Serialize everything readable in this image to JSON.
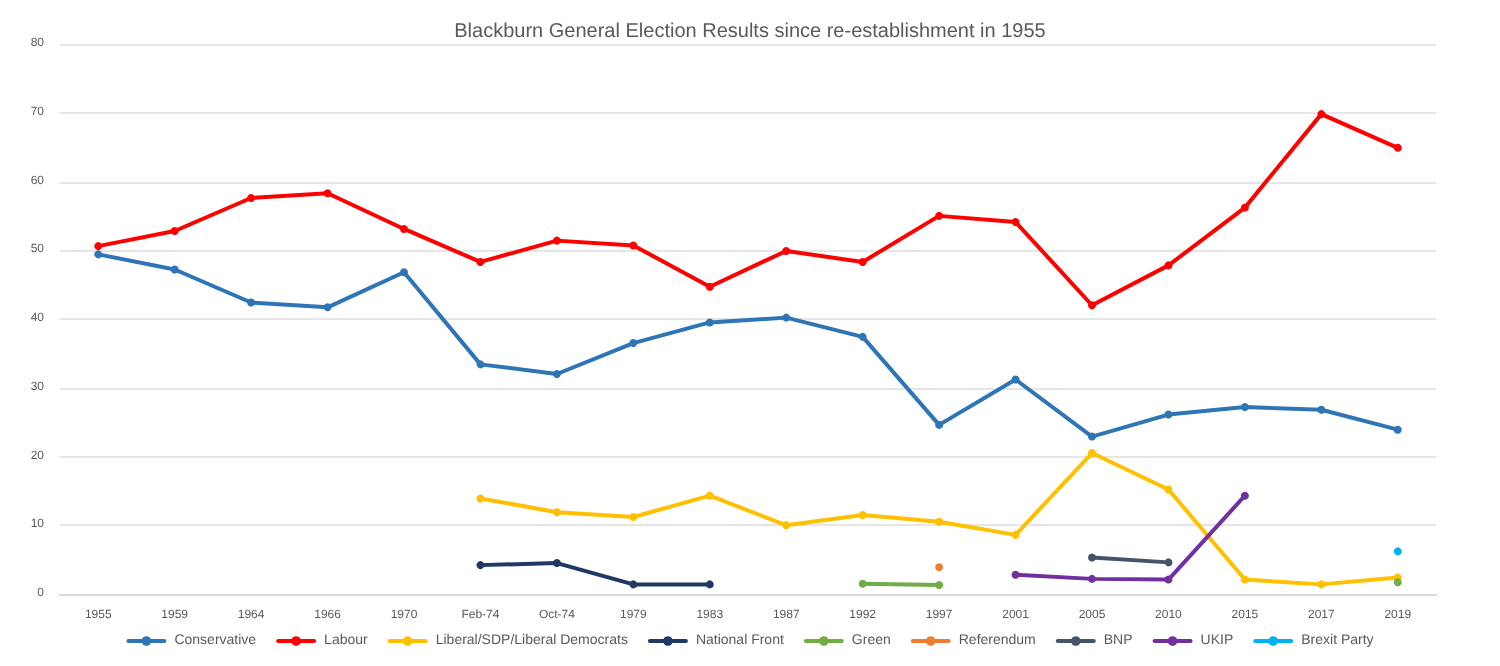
{
  "chart_data": {
    "type": "line",
    "title": "Blackburn General Election Results since re-establishment in 1955",
    "categories": [
      "1955",
      "1959",
      "1964",
      "1966",
      "1970",
      "Feb-74",
      "Oct-74",
      "1979",
      "1983",
      "1987",
      "1992",
      "1997",
      "2001",
      "2005",
      "2010",
      "2015",
      "2017",
      "2019"
    ],
    "series": [
      {
        "name": "Conservative",
        "color": "#2e75b6",
        "values": [
          49.4,
          47.2,
          42.4,
          41.7,
          46.8,
          33.4,
          32.0,
          36.5,
          39.5,
          40.2,
          37.4,
          24.6,
          31.2,
          22.9,
          26.1,
          27.2,
          26.8,
          23.9
        ]
      },
      {
        "name": "Labour",
        "color": "#ff0000",
        "values": [
          50.6,
          52.8,
          57.6,
          58.3,
          53.1,
          48.3,
          51.4,
          50.7,
          44.7,
          49.9,
          48.3,
          55.0,
          54.1,
          42.0,
          47.8,
          56.2,
          69.8,
          64.9
        ]
      },
      {
        "name": "Liberal/SDP/Liberal Democrats",
        "color": "#ffc000",
        "values": [
          null,
          null,
          null,
          null,
          null,
          13.9,
          11.9,
          11.2,
          14.3,
          10.0,
          11.5,
          10.5,
          8.6,
          20.5,
          15.2,
          2.1,
          1.4,
          2.4
        ]
      },
      {
        "name": "National Front",
        "color": "#1f3864",
        "values": [
          null,
          null,
          null,
          null,
          null,
          4.2,
          4.5,
          1.4,
          1.4,
          null,
          null,
          null,
          null,
          null,
          null,
          null,
          null,
          null
        ]
      },
      {
        "name": "Green",
        "color": "#70ad47",
        "values": [
          null,
          null,
          null,
          null,
          null,
          null,
          null,
          null,
          null,
          null,
          1.5,
          1.3,
          null,
          null,
          null,
          null,
          null,
          1.7
        ]
      },
      {
        "name": "Referendum",
        "color": "#ed7d31",
        "values": [
          null,
          null,
          null,
          null,
          null,
          null,
          null,
          null,
          null,
          null,
          null,
          3.9,
          null,
          null,
          null,
          null,
          null,
          null
        ]
      },
      {
        "name": "BNP",
        "color": "#44546a",
        "values": [
          null,
          null,
          null,
          null,
          null,
          null,
          null,
          null,
          null,
          null,
          null,
          null,
          null,
          5.3,
          4.6,
          null,
          null,
          null
        ]
      },
      {
        "name": "UKIP",
        "color": "#7030a0",
        "values": [
          null,
          null,
          null,
          null,
          null,
          null,
          null,
          null,
          null,
          null,
          null,
          null,
          2.8,
          2.2,
          2.1,
          14.3,
          null,
          null
        ]
      },
      {
        "name": "Brexit Party",
        "color": "#00b0f0",
        "values": [
          null,
          null,
          null,
          null,
          null,
          null,
          null,
          null,
          null,
          null,
          null,
          null,
          null,
          null,
          null,
          null,
          null,
          6.2
        ]
      }
    ],
    "ylim": [
      0,
      80
    ],
    "yticks": [
      0,
      10,
      20,
      30,
      40,
      50,
      60,
      70,
      80
    ],
    "grid": "y",
    "legend": "bottom",
    "marker": "circle",
    "line_style": "solid"
  }
}
